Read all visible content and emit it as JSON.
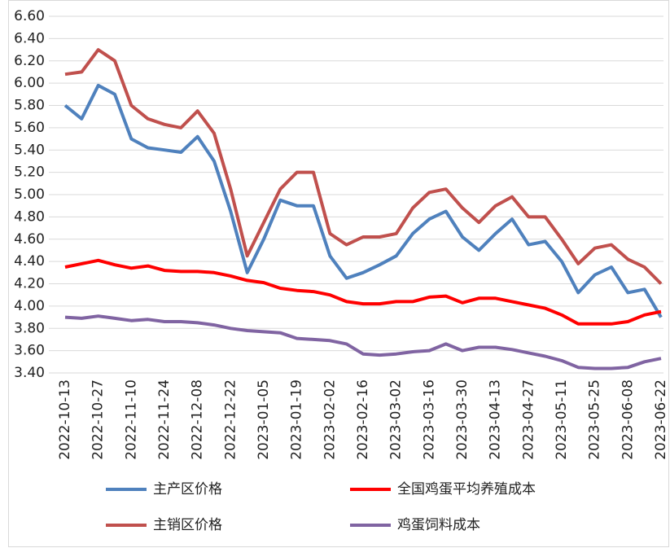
{
  "chart_data": {
    "type": "line",
    "categories": [
      "2022-10-13",
      null,
      "2022-10-27",
      null,
      "2022-11-10",
      null,
      "2022-11-24",
      null,
      "2022-12-08",
      null,
      "2022-12-22",
      null,
      "2023-01-05",
      null,
      "2023-01-19",
      null,
      "2023-02-02",
      null,
      "2023-02-16",
      null,
      "2023-03-02",
      null,
      "2023-03-16",
      null,
      "2023-03-30",
      null,
      "2023-04-13",
      null,
      "2023-04-27",
      null,
      "2023-05-11",
      null,
      "2023-05-25",
      null,
      "2023-06-08",
      null,
      "2023-06-22"
    ],
    "series": [
      {
        "name": "主产区价格",
        "color": "#4f81bd",
        "values": [
          5.8,
          5.68,
          5.98,
          5.9,
          5.5,
          5.42,
          5.4,
          5.38,
          5.52,
          5.3,
          4.85,
          4.3,
          4.6,
          4.95,
          4.9,
          4.9,
          4.45,
          4.25,
          4.3,
          4.37,
          4.45,
          4.65,
          4.78,
          4.85,
          4.62,
          4.5,
          4.65,
          4.78,
          4.55,
          4.58,
          4.4,
          4.12,
          4.28,
          4.35,
          4.12,
          4.15,
          3.9
        ]
      },
      {
        "name": "全国鸡蛋平均养殖成本",
        "color": "#ff0000",
        "values": [
          4.35,
          4.38,
          4.41,
          4.37,
          4.34,
          4.36,
          4.32,
          4.31,
          4.31,
          4.3,
          4.27,
          4.23,
          4.21,
          4.16,
          4.14,
          4.13,
          4.1,
          4.04,
          4.02,
          4.02,
          4.04,
          4.04,
          4.08,
          4.09,
          4.03,
          4.07,
          4.07,
          4.04,
          4.01,
          3.98,
          3.92,
          3.84,
          3.84,
          3.84,
          3.86,
          3.92,
          3.95
        ]
      },
      {
        "name": "主销区价格",
        "color": "#c0504d",
        "values": [
          6.08,
          6.1,
          6.3,
          6.2,
          5.8,
          5.68,
          5.63,
          5.6,
          5.75,
          5.55,
          5.05,
          4.45,
          4.75,
          5.05,
          5.2,
          5.2,
          4.65,
          4.55,
          4.62,
          4.62,
          4.65,
          4.88,
          5.02,
          5.05,
          4.88,
          4.75,
          4.9,
          4.98,
          4.8,
          4.8,
          4.6,
          4.38,
          4.52,
          4.55,
          4.42,
          4.35,
          4.2
        ]
      },
      {
        "name": "鸡蛋饲料成本",
        "color": "#8064a2",
        "values": [
          3.9,
          3.89,
          3.91,
          3.89,
          3.87,
          3.88,
          3.86,
          3.86,
          3.85,
          3.83,
          3.8,
          3.78,
          3.77,
          3.76,
          3.71,
          3.7,
          3.69,
          3.66,
          3.57,
          3.56,
          3.57,
          3.59,
          3.6,
          3.66,
          3.6,
          3.63,
          3.63,
          3.61,
          3.58,
          3.55,
          3.51,
          3.45,
          3.44,
          3.44,
          3.45,
          3.5,
          3.53
        ]
      }
    ],
    "ylim": [
      3.4,
      6.6
    ],
    "yticks": [
      {
        "value": 3.4,
        "label": "3.40"
      },
      {
        "value": 3.6,
        "label": "3.60"
      },
      {
        "value": 3.8,
        "label": "3.80"
      },
      {
        "value": 4.0,
        "label": "4.00"
      },
      {
        "value": 4.2,
        "label": "4.20"
      },
      {
        "value": 4.4,
        "label": "4.40"
      },
      {
        "value": 4.6,
        "label": "4.60"
      },
      {
        "value": 4.8,
        "label": "4.80"
      },
      {
        "value": 5.0,
        "label": "5.00"
      },
      {
        "value": 5.2,
        "label": "5.20"
      },
      {
        "value": 5.4,
        "label": "5.40"
      },
      {
        "value": 5.6,
        "label": "5.60"
      },
      {
        "value": 5.8,
        "label": "5.80"
      },
      {
        "value": 6.0,
        "label": "6.00"
      },
      {
        "value": 6.2,
        "label": "6.20"
      },
      {
        "value": 6.4,
        "label": "6.40"
      },
      {
        "value": 6.6,
        "label": "6.60"
      }
    ],
    "grid": true,
    "legend": "bottom"
  }
}
